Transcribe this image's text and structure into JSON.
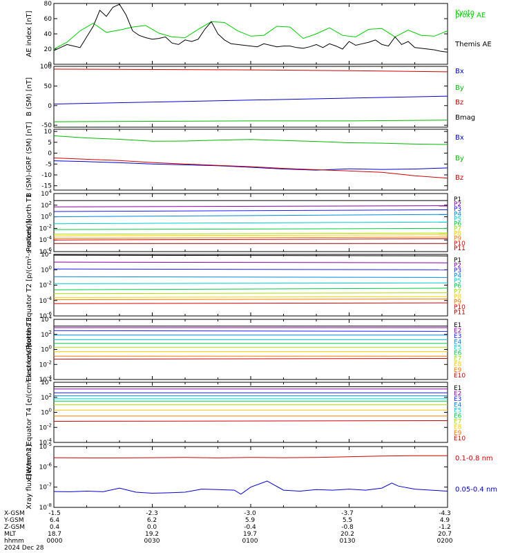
{
  "chart_data": [
    {
      "type": "line",
      "ylabel": "AE index [nT]",
      "ylim": [
        0,
        80
      ],
      "yticks": [
        "0",
        "20",
        "40",
        "60",
        "80"
      ],
      "yscale": "linear",
      "series": [
        {
          "name": "Kyoto proxy AE",
          "color": "#00cc00",
          "x": [
            0,
            4,
            8,
            12,
            16,
            20,
            24,
            28,
            32,
            36,
            40,
            44,
            48,
            52,
            56,
            60,
            64,
            68,
            72,
            76,
            80,
            84,
            88,
            92,
            96,
            100,
            104,
            108,
            112,
            116,
            120
          ],
          "values": [
            20,
            29,
            44,
            54,
            42,
            45,
            49,
            51,
            41,
            36,
            35,
            46,
            56,
            55,
            44,
            37,
            38,
            50,
            49,
            34,
            40,
            48,
            38,
            36,
            46,
            47,
            36,
            45,
            38,
            37,
            44
          ]
        },
        {
          "name": "Themis AE",
          "color": "#000000",
          "x": [
            0,
            2,
            4,
            6,
            8,
            10,
            12,
            14,
            16,
            18,
            20,
            22,
            24,
            26,
            28,
            30,
            32,
            34,
            36,
            38,
            40,
            42,
            44,
            46,
            48,
            50,
            52,
            54,
            56,
            58,
            60,
            62,
            64,
            66,
            68,
            70,
            72,
            74,
            76,
            78,
            80,
            82,
            84,
            86,
            88,
            90,
            92,
            94,
            96,
            98,
            100,
            102,
            104,
            106,
            108,
            110,
            112,
            114,
            116,
            118,
            120
          ],
          "values": [
            18,
            22,
            26,
            24,
            22,
            36,
            50,
            71,
            63,
            75,
            79,
            65,
            44,
            38,
            35,
            33,
            34,
            36,
            28,
            26,
            32,
            30,
            33,
            46,
            56,
            40,
            32,
            27,
            26,
            25,
            24,
            23,
            27,
            25,
            23,
            24,
            24,
            22,
            21,
            23,
            26,
            22,
            27,
            24,
            20,
            30,
            25,
            27,
            29,
            32,
            26,
            24,
            36,
            26,
            30,
            22,
            21,
            20,
            19,
            17,
            16
          ]
        }
      ]
    },
    {
      "type": "line",
      "ylabel": "B (SM) [nT]",
      "ylim": [
        -55,
        100
      ],
      "yticks": [
        "-50",
        "0",
        "50",
        "100"
      ],
      "yscale": "linear",
      "series": [
        {
          "name": "Bx",
          "color": "#0000cc",
          "x": [
            0,
            120
          ],
          "values": [
            4,
            24
          ]
        },
        {
          "name": "By",
          "color": "#00bb00",
          "x": [
            0,
            30,
            60,
            90,
            120
          ],
          "values": [
            -41,
            -40,
            -39,
            -39,
            -37
          ]
        },
        {
          "name": "Bz",
          "color": "#cc0000",
          "x": [
            0,
            30,
            60,
            90,
            120
          ],
          "values": [
            93,
            92,
            91,
            89,
            86
          ]
        },
        {
          "name": "Bmag",
          "color": "#000000",
          "x": [],
          "values": []
        }
      ]
    },
    {
      "type": "line",
      "ylabel": "B (SM)-IGRF (SM) [nT]",
      "ylim": [
        -17,
        11
      ],
      "yticks": [
        "-15",
        "-10",
        "-5",
        "0",
        "5",
        "10"
      ],
      "yscale": "linear",
      "series": [
        {
          "name": "Bx",
          "color": "#0000cc",
          "x": [
            0,
            10,
            20,
            30,
            40,
            50,
            60,
            70,
            80,
            90,
            100,
            110,
            120
          ],
          "values": [
            -3.5,
            -3.9,
            -4.4,
            -5.0,
            -5.4,
            -5.8,
            -6.5,
            -7.3,
            -7.8,
            -7.2,
            -7.5,
            -7.3,
            -6.8
          ]
        },
        {
          "name": "By",
          "color": "#00bb00",
          "x": [
            0,
            10,
            20,
            30,
            40,
            50,
            60,
            70,
            80,
            90,
            100,
            110,
            120
          ],
          "values": [
            8.0,
            7.0,
            6.4,
            5.5,
            5.6,
            6.0,
            6.3,
            5.8,
            5.4,
            4.8,
            4.6,
            4.2,
            4.0
          ]
        },
        {
          "name": "Bz",
          "color": "#cc0000",
          "x": [
            0,
            10,
            20,
            30,
            40,
            50,
            60,
            70,
            80,
            90,
            100,
            110,
            120
          ],
          "values": [
            -2.2,
            -2.8,
            -3.4,
            -4.3,
            -5.0,
            -5.6,
            -6.2,
            -7.0,
            -7.6,
            -8.2,
            -8.8,
            -10.4,
            -11.5
          ]
        }
      ]
    },
    {
      "type": "line",
      "ylabel": "Protons North T1",
      "yscale": "log",
      "ylim": [
        -6,
        4
      ],
      "yticks": [
        "10^-6",
        "10^-4",
        "10^-2",
        "10^0",
        "10^2",
        "10^4"
      ],
      "series": [
        {
          "name": "P1",
          "color": "#000000",
          "x": [
            0,
            120
          ],
          "values": [
            2.8,
            2.8
          ]
        },
        {
          "name": "P2",
          "color": "#8800aa",
          "x": [
            0,
            120
          ],
          "values": [
            1.7,
            1.9
          ]
        },
        {
          "name": "P3",
          "color": "#1a1aff",
          "x": [
            0,
            120
          ],
          "values": [
            0.9,
            1.2
          ]
        },
        {
          "name": "P4",
          "color": "#0088dd",
          "x": [
            0,
            120
          ],
          "values": [
            0.0,
            0.4
          ]
        },
        {
          "name": "P5",
          "color": "#00cccc",
          "x": [
            0,
            120
          ],
          "values": [
            -1.2,
            -0.9
          ]
        },
        {
          "name": "P6",
          "color": "#00cc44",
          "x": [
            0,
            120
          ],
          "values": [
            -2.2,
            -2.0
          ]
        },
        {
          "name": "P7",
          "color": "#aadd00",
          "x": [
            0,
            120
          ],
          "values": [
            -3.0,
            -2.8
          ]
        },
        {
          "name": "P8",
          "color": "#ffcc00",
          "x": [
            0,
            120
          ],
          "values": [
            -3.3,
            -3.1
          ]
        },
        {
          "name": "P9",
          "color": "#ff7700",
          "x": [
            0,
            120
          ],
          "values": [
            -3.7,
            -3.5
          ]
        },
        {
          "name": "P10",
          "color": "#dd0000",
          "x": [
            0,
            120
          ],
          "values": [
            -4.0,
            -3.8
          ]
        },
        {
          "name": "P11",
          "color": "#990000",
          "x": [
            0,
            120
          ],
          "values": [
            -4.6,
            -4.6
          ]
        }
      ]
    },
    {
      "type": "line",
      "ylabel": "Protons Equator T2 [p/(cm²-s-sr-keV)]",
      "yscale": "log",
      "ylim": [
        -6,
        2
      ],
      "yticks": [
        "10^-6",
        "10^-4",
        "10^-2",
        "10^0",
        "10^2"
      ],
      "series": [
        {
          "name": "P1",
          "color": "#000000",
          "x": [
            0,
            120
          ],
          "values": [
            1.9,
            1.8
          ]
        },
        {
          "name": "P2",
          "color": "#8800aa",
          "x": [
            0,
            120
          ],
          "values": [
            1.0,
            0.9
          ]
        },
        {
          "name": "P3",
          "color": "#1a1aff",
          "x": [
            0,
            120
          ],
          "values": [
            0.1,
            0.0
          ]
        },
        {
          "name": "P4",
          "color": "#0088dd",
          "x": [
            0,
            120
          ],
          "values": [
            -0.9,
            -1.0
          ]
        },
        {
          "name": "P5",
          "color": "#00cccc",
          "x": [
            0,
            120
          ],
          "values": [
            -1.8,
            -1.7
          ]
        },
        {
          "name": "P6",
          "color": "#00cc44",
          "x": [
            0,
            120
          ],
          "values": [
            -2.6,
            -2.4
          ]
        },
        {
          "name": "P7",
          "color": "#aadd00",
          "x": [
            0,
            120
          ],
          "values": [
            -3.1,
            -3.0
          ]
        },
        {
          "name": "P8",
          "color": "#ffcc00",
          "x": [
            0,
            120
          ],
          "values": [
            -3.6,
            -3.5
          ]
        },
        {
          "name": "P9",
          "color": "#ff7700",
          "x": [
            0,
            120
          ],
          "values": [
            -3.9,
            -3.8
          ]
        },
        {
          "name": "P10",
          "color": "#dd0000",
          "x": [
            0,
            120
          ],
          "values": [
            -4.4,
            -4.3
          ]
        },
        {
          "name": "P11",
          "color": "#990000",
          "x": [],
          "values": []
        }
      ]
    },
    {
      "type": "line",
      "ylabel": "Electrons North T3",
      "yscale": "log",
      "ylim": [
        -4,
        4
      ],
      "yticks": [
        "10^-4",
        "10^-2",
        "10^0",
        "10^2",
        "10^4"
      ],
      "series": [
        {
          "name": "E1",
          "color": "#000000",
          "x": [
            0,
            120
          ],
          "values": [
            3.1,
            3.1
          ]
        },
        {
          "name": "E2",
          "color": "#8800aa",
          "x": [
            0,
            120
          ],
          "values": [
            2.9,
            2.9
          ]
        },
        {
          "name": "E3",
          "color": "#1a1aff",
          "x": [
            0,
            120
          ],
          "values": [
            2.5,
            2.4
          ]
        },
        {
          "name": "E4",
          "color": "#0088dd",
          "x": [
            0,
            120
          ],
          "values": [
            1.9,
            1.9
          ]
        },
        {
          "name": "E5",
          "color": "#00cccc",
          "x": [
            0,
            120
          ],
          "values": [
            1.3,
            1.3
          ]
        },
        {
          "name": "E6",
          "color": "#00cc44",
          "x": [
            0,
            120
          ],
          "values": [
            0.8,
            0.8
          ]
        },
        {
          "name": "E7",
          "color": "#aadd00",
          "x": [
            0,
            120
          ],
          "values": [
            0.3,
            0.3
          ]
        },
        {
          "name": "E8",
          "color": "#ffcc00",
          "x": [
            0,
            120
          ],
          "values": [
            -0.3,
            -0.3
          ]
        },
        {
          "name": "E9",
          "color": "#ff7700",
          "x": [
            0,
            120
          ],
          "values": [
            -0.9,
            -0.9
          ]
        },
        {
          "name": "E10",
          "color": "#cc0000",
          "x": [
            0,
            120
          ],
          "values": [
            -1.3,
            -1.2
          ]
        }
      ]
    },
    {
      "type": "line",
      "ylabel": "Electrons Equator T4 [e/(cm²-s-sr-keV)]",
      "yscale": "log",
      "ylim": [
        -4,
        4
      ],
      "yticks": [
        "10^-4",
        "10^-2",
        "10^0",
        "10^2",
        "10^4"
      ],
      "series": [
        {
          "name": "E1",
          "color": "#000000",
          "x": [
            0,
            120
          ],
          "values": [
            3.4,
            3.4
          ]
        },
        {
          "name": "E2",
          "color": "#8800aa",
          "x": [
            0,
            120
          ],
          "values": [
            3.1,
            3.1
          ]
        },
        {
          "name": "E3",
          "color": "#1a1aff",
          "x": [
            0,
            120
          ],
          "values": [
            2.6,
            2.6
          ]
        },
        {
          "name": "E4",
          "color": "#0088dd",
          "x": [
            0,
            120
          ],
          "values": [
            2.2,
            2.2
          ]
        },
        {
          "name": "E5",
          "color": "#00cccc",
          "x": [
            0,
            120
          ],
          "values": [
            1.8,
            1.8
          ]
        },
        {
          "name": "E6",
          "color": "#00cc44",
          "x": [
            0,
            120
          ],
          "values": [
            1.5,
            1.5
          ]
        },
        {
          "name": "E7",
          "color": "#aadd00",
          "x": [
            0,
            120
          ],
          "values": [
            1.0,
            1.0
          ]
        },
        {
          "name": "E8",
          "color": "#ffcc00",
          "x": [
            0,
            120
          ],
          "values": [
            0.3,
            0.3
          ]
        },
        {
          "name": "E9",
          "color": "#ff7700",
          "x": [
            0,
            120
          ],
          "values": [
            -0.5,
            -0.5
          ]
        },
        {
          "name": "E10",
          "color": "#cc0000",
          "x": [
            0,
            120
          ],
          "values": [
            -1.2,
            -1.1
          ]
        }
      ]
    },
    {
      "type": "line",
      "ylabel": "Xray flux [W/m^2]",
      "yscale": "log",
      "ylim": [
        -8,
        -5
      ],
      "yticks": [
        "10^-8",
        "10^-7",
        "10^-6",
        "10^-5"
      ],
      "series": [
        {
          "name": "0.1-0.8 nm",
          "color": "#cc0000",
          "x": [
            0,
            10,
            20,
            30,
            40,
            50,
            60,
            70,
            80,
            90,
            100,
            110,
            120
          ],
          "values": [
            -5.55,
            -5.56,
            -5.56,
            -5.55,
            -5.54,
            -5.56,
            -5.54,
            -5.55,
            -5.54,
            -5.5,
            -5.47,
            -5.45,
            -5.45
          ]
        },
        {
          "name": "0.05-0.4 nm",
          "color": "#0000cc",
          "x": [
            0,
            5,
            10,
            15,
            20,
            25,
            30,
            35,
            40,
            45,
            50,
            55,
            57,
            60,
            65,
            70,
            75,
            80,
            85,
            90,
            95,
            100,
            103,
            105,
            110,
            115,
            120
          ],
          "values": [
            -7.22,
            -7.23,
            -7.2,
            -7.23,
            -7.05,
            -7.25,
            -7.3,
            -7.28,
            -7.25,
            -7.1,
            -7.12,
            -7.15,
            -7.35,
            -7.0,
            -6.7,
            -7.15,
            -7.2,
            -7.12,
            -7.15,
            -7.1,
            -7.15,
            -7.05,
            -6.8,
            -6.95,
            -7.1,
            -7.15,
            -7.2
          ]
        }
      ]
    }
  ],
  "xaxis": {
    "rows": [
      {
        "label": "X-GSM",
        "values": [
          "-1.5",
          "-2.3",
          "-3.0",
          "-3.7",
          "-4.3"
        ]
      },
      {
        "label": "Y-GSM",
        "values": [
          "6.4",
          "6.2",
          "5.9",
          "5.5",
          "4.9"
        ]
      },
      {
        "label": "Z-GSM",
        "values": [
          "0.4",
          "0.0",
          "-0.4",
          "-0.8",
          "-1.2"
        ]
      },
      {
        "label": "MLT",
        "values": [
          "18.7",
          "19.2",
          "19.7",
          "20.2",
          "20.7"
        ]
      },
      {
        "label": "hhmm",
        "values": [
          "0000",
          "0030",
          "0100",
          "0130",
          "0200"
        ]
      }
    ],
    "date": "2024 Dec 28"
  }
}
